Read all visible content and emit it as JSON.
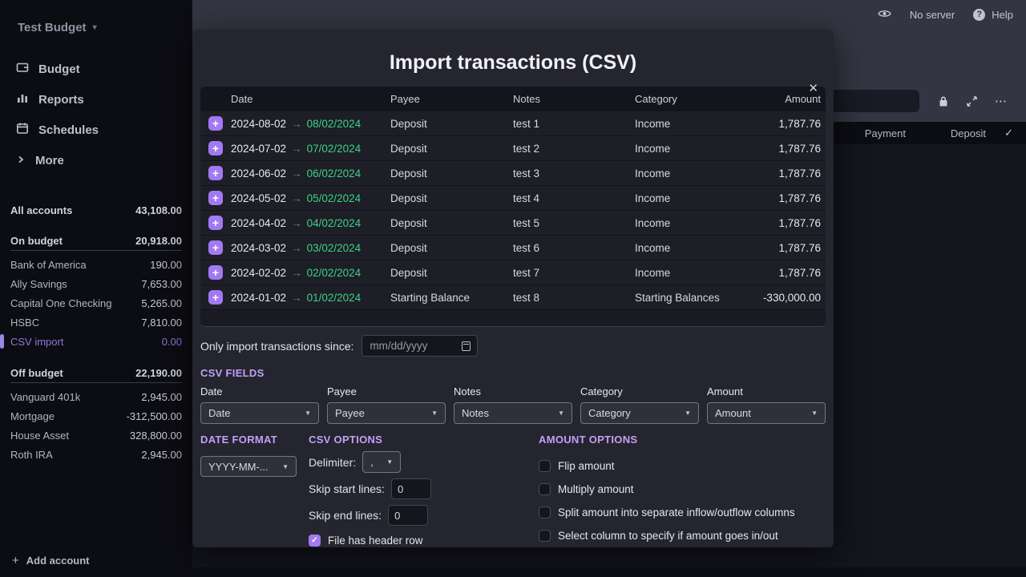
{
  "colors": {
    "accent_purple": "#a379f2",
    "heading_purple": "#c2a0f8",
    "parsed_date_green": "#3ed189",
    "selected_account_purple": "#8b7ad6"
  },
  "icons": {
    "close": "✕",
    "caret_down": "▾",
    "select_arrow": "▼",
    "check": "✓",
    "ellipsis": "⋯",
    "plus": "+",
    "date_arrow": "→"
  },
  "sidebar": {
    "budget_name": "Test Budget",
    "nav": [
      "Budget",
      "Reports",
      "Schedules",
      "More"
    ],
    "all_accounts": {
      "name": "All accounts",
      "value": "43,108.00"
    },
    "groups": [
      {
        "label": "On budget",
        "value": "20,918.00",
        "accounts": [
          {
            "name": "Bank of America",
            "value": "190.00"
          },
          {
            "name": "Ally Savings",
            "value": "7,653.00"
          },
          {
            "name": "Capital One Checking",
            "value": "5,265.00"
          },
          {
            "name": "HSBC",
            "value": "7,810.00"
          },
          {
            "name": "CSV import",
            "value": "0.00",
            "selected": true
          }
        ]
      },
      {
        "label": "Off budget",
        "value": "22,190.00",
        "accounts": [
          {
            "name": "Vanguard 401k",
            "value": "2,945.00"
          },
          {
            "name": "Mortgage",
            "value": "-312,500.00"
          },
          {
            "name": "House Asset",
            "value": "328,800.00"
          },
          {
            "name": "Roth IRA",
            "value": "2,945.00"
          }
        ]
      }
    ],
    "add_account_label": "Add account"
  },
  "topbar": {
    "server_status": "No server",
    "help_label": "Help"
  },
  "register": {
    "columns": [
      "Payment",
      "Deposit"
    ],
    "select_all": "✓"
  },
  "modal": {
    "title": "Import transactions (CSV)",
    "table": {
      "headers": [
        "Date",
        "Payee",
        "Notes",
        "Category",
        "Amount"
      ],
      "date_arrow": "→",
      "rows": [
        {
          "date": "2024-08-02",
          "parsed_date": "08/02/2024",
          "payee": "Deposit",
          "notes": "test 1",
          "category": "Income",
          "amount": "1,787.76"
        },
        {
          "date": "2024-07-02",
          "parsed_date": "07/02/2024",
          "payee": "Deposit",
          "notes": "test 2",
          "category": "Income",
          "amount": "1,787.76"
        },
        {
          "date": "2024-06-02",
          "parsed_date": "06/02/2024",
          "payee": "Deposit",
          "notes": "test 3",
          "category": "Income",
          "amount": "1,787.76"
        },
        {
          "date": "2024-05-02",
          "parsed_date": "05/02/2024",
          "payee": "Deposit",
          "notes": "test 4",
          "category": "Income",
          "amount": "1,787.76"
        },
        {
          "date": "2024-04-02",
          "parsed_date": "04/02/2024",
          "payee": "Deposit",
          "notes": "test 5",
          "category": "Income",
          "amount": "1,787.76"
        },
        {
          "date": "2024-03-02",
          "parsed_date": "03/02/2024",
          "payee": "Deposit",
          "notes": "test 6",
          "category": "Income",
          "amount": "1,787.76"
        },
        {
          "date": "2024-02-02",
          "parsed_date": "02/02/2024",
          "payee": "Deposit",
          "notes": "test 7",
          "category": "Income",
          "amount": "1,787.76"
        },
        {
          "date": "2024-01-02",
          "parsed_date": "01/02/2024",
          "payee": "Starting Balance",
          "notes": "test 8",
          "category": "Starting Balances",
          "amount": "-330,000.00"
        }
      ]
    },
    "since": {
      "label": "Only import transactions since:",
      "placeholder": "mm/dd/yyyy"
    },
    "csv_fields": {
      "heading": "CSV FIELDS",
      "fields": [
        {
          "label": "Date",
          "value": "Date"
        },
        {
          "label": "Payee",
          "value": "Payee"
        },
        {
          "label": "Notes",
          "value": "Notes"
        },
        {
          "label": "Category",
          "value": "Category"
        },
        {
          "label": "Amount",
          "value": "Amount"
        }
      ]
    },
    "date_format": {
      "heading": "DATE FORMAT",
      "value": "YYYY-MM-..."
    },
    "csv_options": {
      "heading": "CSV OPTIONS",
      "delimiter_label": "Delimiter:",
      "delimiter_value": ",",
      "skip_start_label": "Skip start lines:",
      "skip_start_value": "0",
      "skip_end_label": "Skip end lines:",
      "skip_end_value": "0",
      "header_checkbox": {
        "label": "File has header row",
        "checked": true
      }
    },
    "amount_options": {
      "heading": "AMOUNT OPTIONS",
      "checkboxes": [
        {
          "label": "Flip amount",
          "checked": false
        },
        {
          "label": "Multiply amount",
          "checked": false
        },
        {
          "label": "Split amount into separate inflow/outflow columns",
          "checked": false
        },
        {
          "label": "Select column to specify if amount goes in/out",
          "checked": false
        }
      ]
    }
  }
}
